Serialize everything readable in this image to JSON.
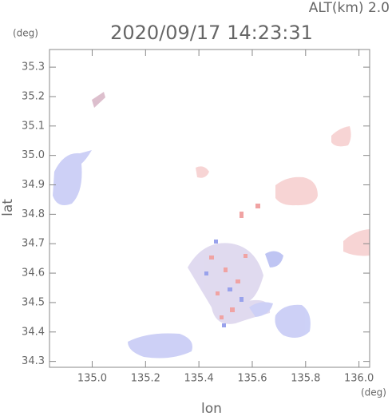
{
  "chart_data": {
    "type": "map",
    "altitude_label": "ALT(km) 2.0",
    "title": "2020/09/17 14:23:31",
    "y_unit": "(deg)",
    "x_unit": "(deg)",
    "x_label": "lon",
    "y_label": "lat",
    "xlim": [
      134.84,
      136.04
    ],
    "ylim": [
      34.28,
      35.36
    ],
    "xticks": [
      {
        "value": 135,
        "label": "135.0"
      },
      135.2,
      135.4,
      135.6,
      135.8,
      {
        "value": 136,
        "label": "136.0"
      }
    ],
    "yticks": [
      34.3,
      34.4,
      34.5,
      34.6,
      34.7,
      34.8,
      34.9,
      {
        "value": 35,
        "label": "35.0"
      },
      35.1,
      35.2,
      35.3
    ]
  }
}
